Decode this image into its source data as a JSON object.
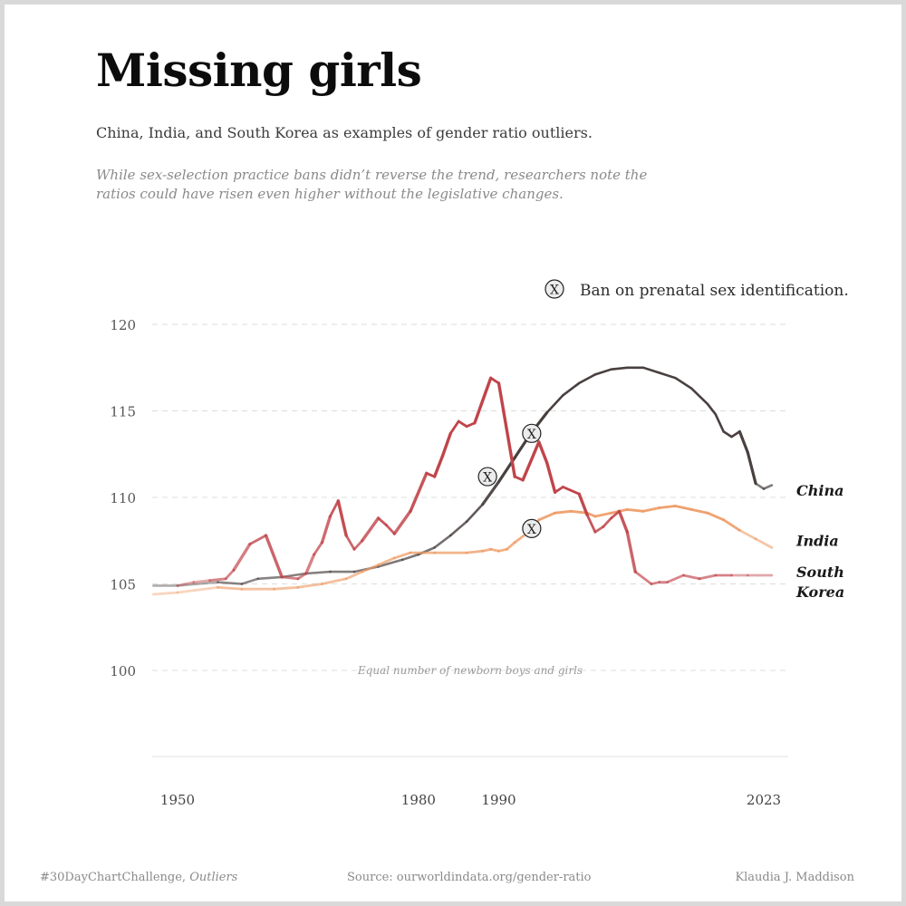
{
  "header": {
    "title": "Missing girls",
    "subtitle": "China, India, and South Korea as examples of gender ratio outliers.",
    "note": "While sex-selection practice bans didn’t reverse the trend, researchers note the ratios could have risen even higher without the legislative changes."
  },
  "legend": {
    "marker": "X",
    "label": "Ban on prenatal sex identification."
  },
  "footer": {
    "hashtag": "#30DayChartChallenge,",
    "theme": "Outliers",
    "source": "Source: ourworldindata.org/gender-ratio",
    "author": "Klaudia J. Maddison"
  },
  "colors": {
    "china": "#4a4040",
    "india": "#ee9a63",
    "south_korea": "#c0444a",
    "grid": "#dddddd"
  },
  "chart_data": {
    "type": "line",
    "title": "Missing girls",
    "ylabel": "",
    "xlabel": "",
    "xlim": [
      1950,
      2023
    ],
    "ylim": [
      95,
      120
    ],
    "x_ticks": [
      1950,
      1980,
      1990,
      2023
    ],
    "y_ticks": [
      100,
      105,
      110,
      115,
      120
    ],
    "reference_line": {
      "y": 100,
      "label": "Equal number of newborn boys and girls"
    },
    "series": [
      {
        "name": "China",
        "key": "china",
        "points": [
          [
            1947,
            104.9
          ],
          [
            1950,
            104.9
          ],
          [
            1955,
            105.1
          ],
          [
            1958,
            105.0
          ],
          [
            1960,
            105.3
          ],
          [
            1963,
            105.4
          ],
          [
            1966,
            105.6
          ],
          [
            1969,
            105.7
          ],
          [
            1972,
            105.7
          ],
          [
            1975,
            106.0
          ],
          [
            1978,
            106.4
          ],
          [
            1980,
            106.7
          ],
          [
            1982,
            107.1
          ],
          [
            1984,
            107.8
          ],
          [
            1986,
            108.6
          ],
          [
            1988,
            109.6
          ],
          [
            1990,
            110.9
          ],
          [
            1992,
            112.3
          ],
          [
            1994,
            113.7
          ],
          [
            1996,
            114.9
          ],
          [
            1998,
            115.9
          ],
          [
            2000,
            116.6
          ],
          [
            2002,
            117.1
          ],
          [
            2004,
            117.4
          ],
          [
            2006,
            117.5
          ],
          [
            2008,
            117.5
          ],
          [
            2010,
            117.2
          ],
          [
            2012,
            116.9
          ],
          [
            2014,
            116.3
          ],
          [
            2016,
            115.4
          ],
          [
            2017,
            114.8
          ],
          [
            2018,
            113.8
          ],
          [
            2019,
            113.5
          ],
          [
            2020,
            113.8
          ],
          [
            2021,
            112.6
          ],
          [
            2022,
            110.8
          ],
          [
            2023,
            110.5
          ],
          [
            2024,
            110.7
          ]
        ]
      },
      {
        "name": "India",
        "key": "india",
        "points": [
          [
            1947,
            104.4
          ],
          [
            1950,
            104.5
          ],
          [
            1955,
            104.8
          ],
          [
            1958,
            104.7
          ],
          [
            1962,
            104.7
          ],
          [
            1965,
            104.8
          ],
          [
            1968,
            105.0
          ],
          [
            1971,
            105.3
          ],
          [
            1973,
            105.7
          ],
          [
            1975,
            106.1
          ],
          [
            1977,
            106.5
          ],
          [
            1979,
            106.8
          ],
          [
            1982,
            106.8
          ],
          [
            1986,
            106.8
          ],
          [
            1988,
            106.9
          ],
          [
            1989,
            107.0
          ],
          [
            1990,
            106.9
          ],
          [
            1991,
            107.0
          ],
          [
            1992,
            107.4
          ],
          [
            1994,
            108.1
          ],
          [
            1995,
            108.7
          ],
          [
            1997,
            109.1
          ],
          [
            1999,
            109.2
          ],
          [
            2001,
            109.1
          ],
          [
            2002,
            108.9
          ],
          [
            2004,
            109.1
          ],
          [
            2006,
            109.3
          ],
          [
            2008,
            109.2
          ],
          [
            2010,
            109.4
          ],
          [
            2012,
            109.5
          ],
          [
            2014,
            109.3
          ],
          [
            2016,
            109.1
          ],
          [
            2018,
            108.7
          ],
          [
            2020,
            108.1
          ],
          [
            2022,
            107.6
          ],
          [
            2024,
            107.1
          ]
        ]
      },
      {
        "name": "South Korea",
        "key": "south_korea",
        "points": [
          [
            1950,
            104.9
          ],
          [
            1952,
            105.1
          ],
          [
            1954,
            105.2
          ],
          [
            1956,
            105.3
          ],
          [
            1957,
            105.8
          ],
          [
            1959,
            107.3
          ],
          [
            1961,
            107.8
          ],
          [
            1963,
            105.4
          ],
          [
            1965,
            105.3
          ],
          [
            1966,
            105.6
          ],
          [
            1967,
            106.7
          ],
          [
            1968,
            107.4
          ],
          [
            1969,
            108.9
          ],
          [
            1970,
            109.8
          ],
          [
            1971,
            107.8
          ],
          [
            1972,
            107.0
          ],
          [
            1973,
            107.5
          ],
          [
            1975,
            108.8
          ],
          [
            1976,
            108.4
          ],
          [
            1977,
            107.9
          ],
          [
            1979,
            109.2
          ],
          [
            1981,
            111.4
          ],
          [
            1982,
            111.2
          ],
          [
            1983,
            112.4
          ],
          [
            1984,
            113.7
          ],
          [
            1985,
            114.4
          ],
          [
            1986,
            114.1
          ],
          [
            1987,
            114.3
          ],
          [
            1988,
            115.6
          ],
          [
            1989,
            116.9
          ],
          [
            1990,
            116.6
          ],
          [
            1992,
            111.2
          ],
          [
            1993,
            111.0
          ],
          [
            1995,
            113.2
          ],
          [
            1996,
            112.0
          ],
          [
            1997,
            110.3
          ],
          [
            1998,
            110.6
          ],
          [
            2000,
            110.2
          ],
          [
            2001,
            109.0
          ],
          [
            2002,
            108.0
          ],
          [
            2003,
            108.3
          ],
          [
            2004,
            108.8
          ],
          [
            2005,
            109.2
          ],
          [
            2006,
            108.0
          ],
          [
            2007,
            105.7
          ],
          [
            2009,
            105.0
          ],
          [
            2010,
            105.1
          ],
          [
            2011,
            105.1
          ],
          [
            2013,
            105.5
          ],
          [
            2015,
            105.3
          ],
          [
            2017,
            105.5
          ],
          [
            2019,
            105.5
          ],
          [
            2021,
            105.5
          ],
          [
            2024,
            105.5
          ]
        ]
      }
    ],
    "series_labels": [
      {
        "key": "china",
        "text": "China",
        "y": 110.1
      },
      {
        "key": "india",
        "text": "India",
        "y": 107.2
      },
      {
        "key": "south_korea",
        "line1": "South",
        "line2": "Korea",
        "y": 105.4
      }
    ],
    "ban_markers": [
      {
        "year": 1988.6,
        "value": 111.2,
        "label": "X"
      },
      {
        "year": 1994.1,
        "value": 113.7,
        "label": "X"
      },
      {
        "year": 1994.1,
        "value": 108.2,
        "label": "X"
      }
    ]
  }
}
